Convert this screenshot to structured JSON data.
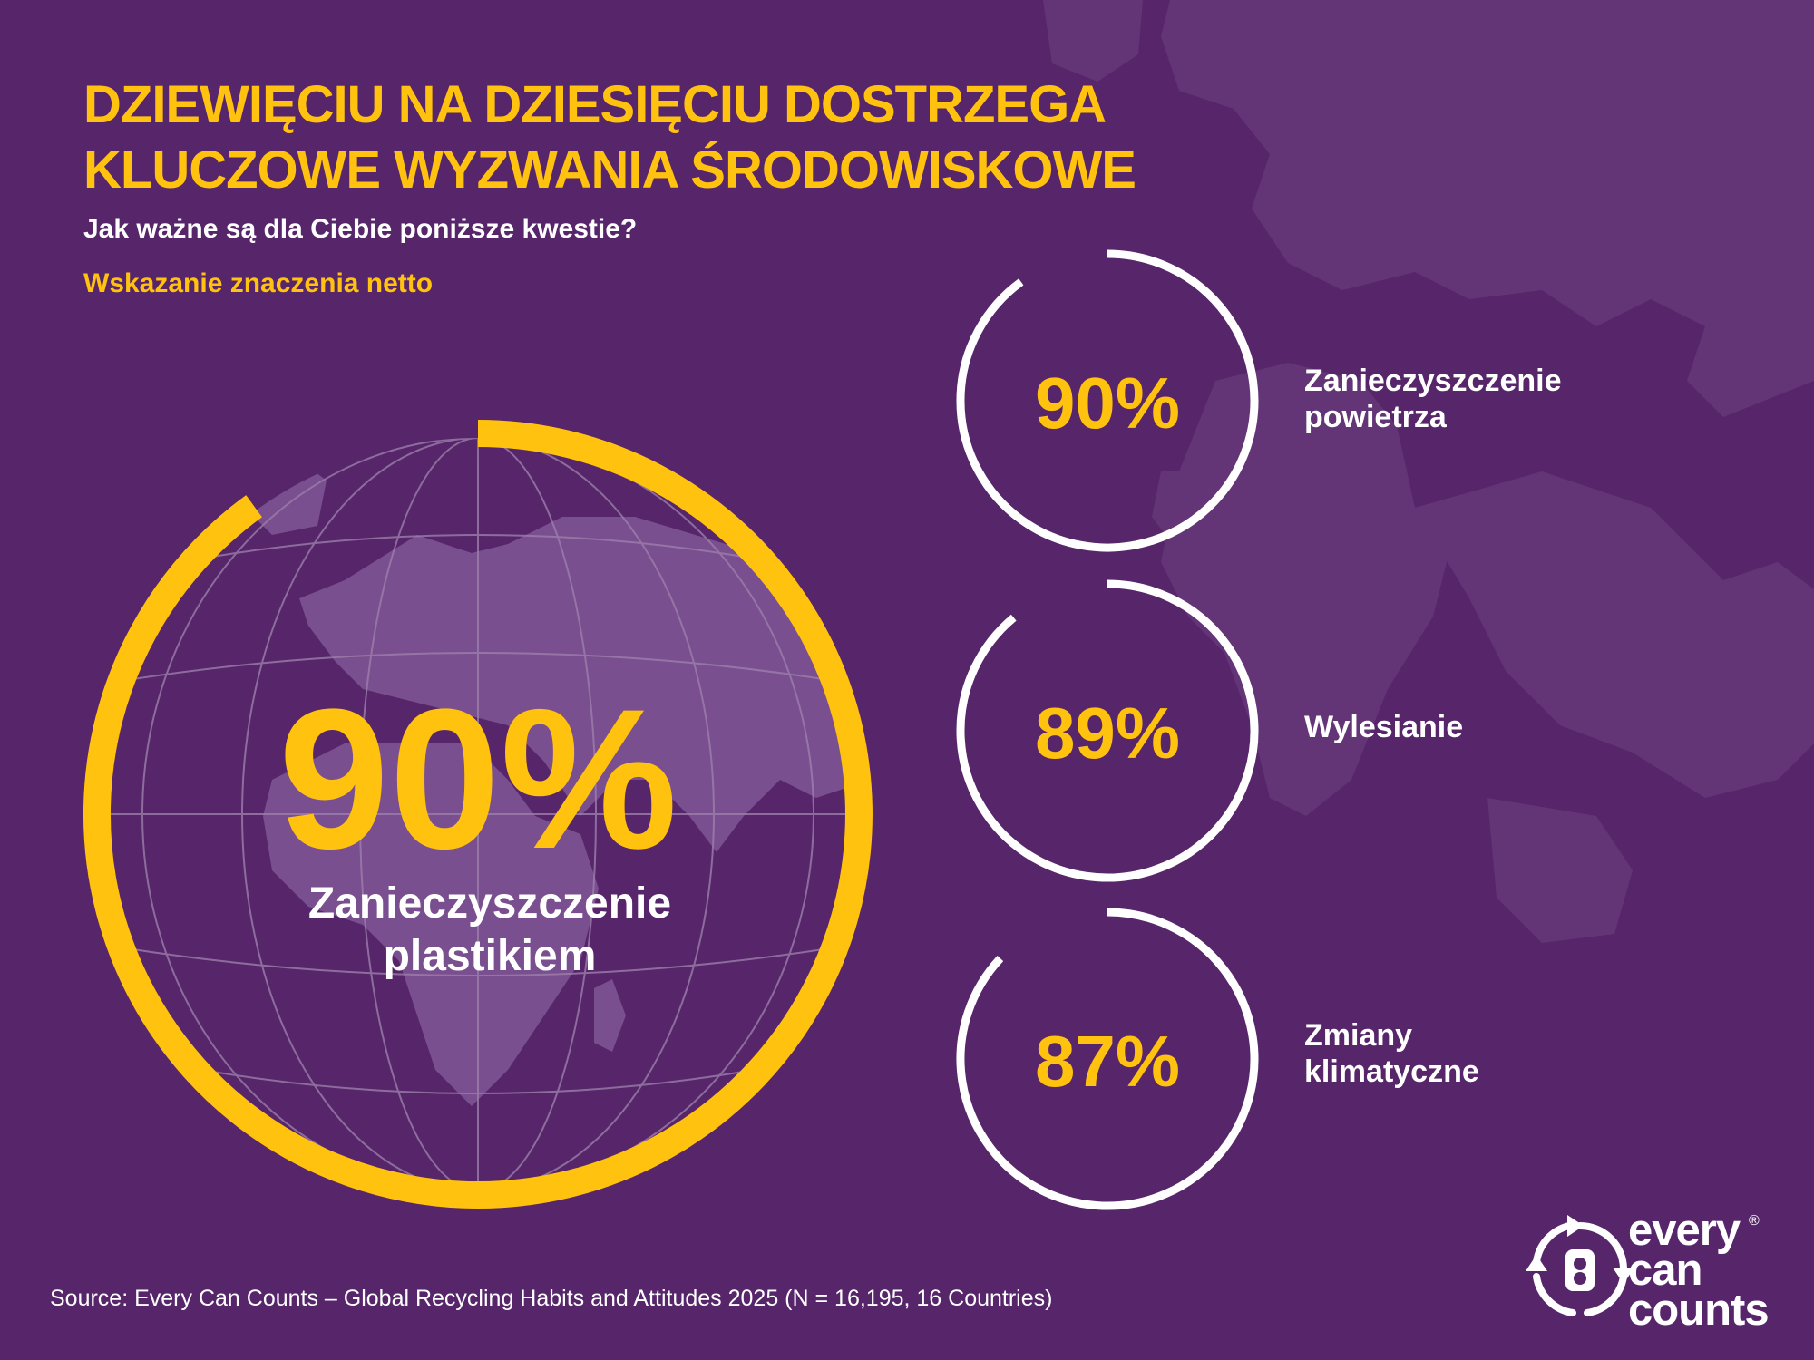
{
  "title": {
    "line1": "DZIEWIĘCIU NA DZIESIĘCIU DOSTRZEGA",
    "line2": "KLUCZOWE WYZWANIA ŚRODOWISKOWE"
  },
  "subtitle": "Jak ważne są dla Ciebie poniższe kwestie?",
  "note": "Wskazanie znaczenia netto",
  "source": "Source: Every Can Counts – Global Recycling Habits and Attitudes 2025 (N = 16,195, 16 Countries)",
  "logo": {
    "line1": "every",
    "line2": "can",
    "line3": "counts",
    "reg": "®"
  },
  "colors": {
    "background": "#56256a",
    "accent": "#ffc20e",
    "ring": "#ffffff",
    "land": "#7a4f8f"
  },
  "chart_data": [
    {
      "type": "pie",
      "categories": [
        "Zanieczyszczenie plastikiem"
      ],
      "values": [
        90
      ],
      "value_labels": [
        "90%"
      ],
      "label_lines": [
        "Zanieczyszczenie",
        "plastikiem"
      ],
      "ylim": [
        0,
        100
      ]
    },
    {
      "type": "pie",
      "categories": [
        "Zanieczyszczenie powietrza",
        "Wylesianie",
        "Zmiany klimatyczne"
      ],
      "values": [
        90,
        89,
        87
      ],
      "value_labels": [
        "90%",
        "89%",
        "87%"
      ],
      "label_lines": [
        [
          "Zanieczyszczenie",
          "powietrza"
        ],
        [
          "Wylesianie"
        ],
        [
          "Zmiany",
          "klimatyczne"
        ]
      ],
      "ylim": [
        0,
        100
      ]
    }
  ]
}
